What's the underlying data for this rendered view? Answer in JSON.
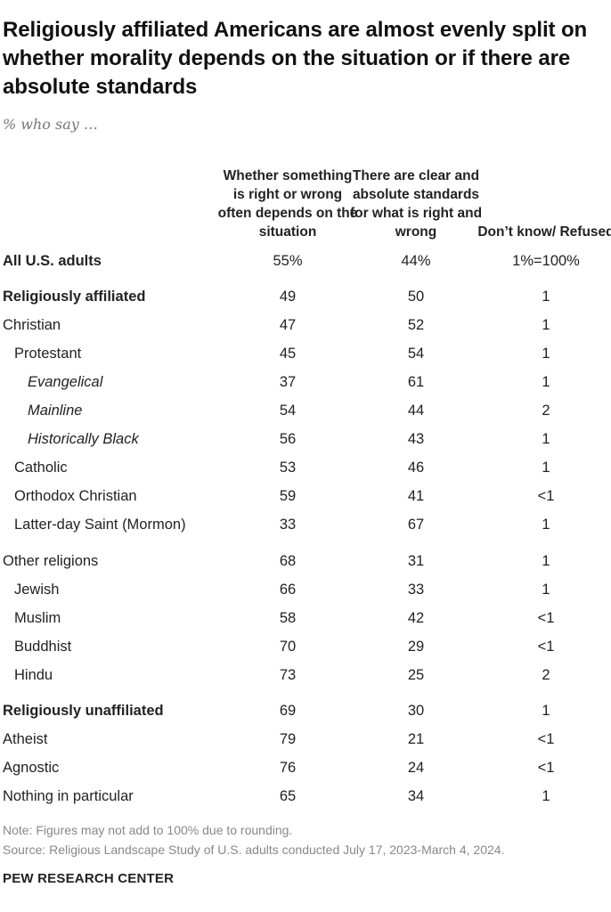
{
  "title": "Religiously affiliated Americans are almost evenly split on whether morality depends on the situation or if there are absolute standards",
  "subtitle": "% who say …",
  "chart_data": {
    "type": "table",
    "title": "Religiously affiliated Americans are almost evenly split on whether morality depends on the situation or if there are absolute standards",
    "subtitle": "% who say …",
    "columns": [
      "Whether something is right or wrong often depends on the situation",
      "There are clear and absolute standards for what is right and wrong",
      "Don’t know/ Refused"
    ],
    "rows": [
      {
        "label": "All U.S. adults",
        "level": 0,
        "bold": true,
        "values": [
          "55%",
          "44%",
          "1%=100%"
        ]
      },
      {
        "label": "Religiously affiliated",
        "level": 0,
        "bold": true,
        "values": [
          "49",
          "50",
          "1"
        ]
      },
      {
        "label": "Christian",
        "level": 0,
        "bold": false,
        "values": [
          "47",
          "52",
          "1"
        ]
      },
      {
        "label": "Protestant",
        "level": 1,
        "bold": false,
        "values": [
          "45",
          "54",
          "1"
        ]
      },
      {
        "label": "Evangelical",
        "level": 2,
        "bold": false,
        "values": [
          "37",
          "61",
          "1"
        ]
      },
      {
        "label": "Mainline",
        "level": 2,
        "bold": false,
        "values": [
          "54",
          "44",
          "2"
        ]
      },
      {
        "label": "Historically Black",
        "level": 2,
        "bold": false,
        "values": [
          "56",
          "43",
          "1"
        ]
      },
      {
        "label": "Catholic",
        "level": 1,
        "bold": false,
        "values": [
          "53",
          "46",
          "1"
        ]
      },
      {
        "label": "Orthodox Christian",
        "level": 1,
        "bold": false,
        "values": [
          "59",
          "41",
          "<1"
        ]
      },
      {
        "label": "Latter-day Saint (Mormon)",
        "level": 1,
        "bold": false,
        "values": [
          "33",
          "67",
          "1"
        ]
      },
      {
        "label": "Other religions",
        "level": 0,
        "bold": false,
        "values": [
          "68",
          "31",
          "1"
        ]
      },
      {
        "label": "Jewish",
        "level": 1,
        "bold": false,
        "values": [
          "66",
          "33",
          "1"
        ]
      },
      {
        "label": "Muslim",
        "level": 1,
        "bold": false,
        "values": [
          "58",
          "42",
          "<1"
        ]
      },
      {
        "label": "Buddhist",
        "level": 1,
        "bold": false,
        "values": [
          "70",
          "29",
          "<1"
        ]
      },
      {
        "label": "Hindu",
        "level": 1,
        "bold": false,
        "values": [
          "73",
          "25",
          "2"
        ]
      },
      {
        "label": "Religiously unaffiliated",
        "level": 0,
        "bold": true,
        "values": [
          "69",
          "30",
          "1"
        ]
      },
      {
        "label": "Atheist",
        "level": 0,
        "bold": false,
        "values": [
          "79",
          "21",
          "<1"
        ]
      },
      {
        "label": "Agnostic",
        "level": 0,
        "bold": false,
        "values": [
          "76",
          "24",
          "<1"
        ]
      },
      {
        "label": "Nothing in particular",
        "level": 0,
        "bold": false,
        "values": [
          "65",
          "34",
          "1"
        ]
      }
    ]
  },
  "footer": {
    "note": "Note: Figures may not add to 100% due to rounding.",
    "source": "Source: Religious Landscape Study of U.S. adults conducted July 17, 2023-March 4, 2024.",
    "brand": "PEW RESEARCH CENTER"
  }
}
